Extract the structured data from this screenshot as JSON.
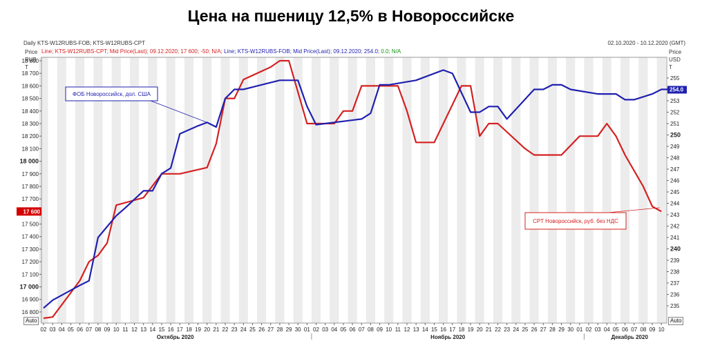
{
  "title": "Цена на пшеницу 12,5% в Новороссийске",
  "header": {
    "instruments": "Daily KTS-W12RUBS-FOB; KTS-W12RUBS-CPT",
    "date_range": "02.10.2020 - 10.12.2020 (GMT)"
  },
  "info_line": {
    "cpt": "Line; KTS-W12RUBS-CPT; Mid Price(Last); 09.12.2020; 17 600; -50; N/A;",
    "fob_blue": "Line; KTS-W12RUBS-FOB; Mid Price(Last); 09.12.2020; 254.0;",
    "fob_green": "0.0; N/A"
  },
  "left_axis": {
    "unit_lines": [
      "Price",
      "RUB",
      "T"
    ],
    "auto_label": "Auto"
  },
  "right_axis": {
    "unit_lines": [
      "Price",
      "USD",
      "T"
    ],
    "auto_label": "Auto"
  },
  "colors": {
    "cpt": "#d42020",
    "fob": "#1f1fb0",
    "grid_band": "#ececec",
    "axis": "#666666"
  },
  "chart_data": {
    "type": "line",
    "x_tick_labels": [
      "02",
      "03",
      "04",
      "05",
      "06",
      "07",
      "08",
      "09",
      "10",
      "11",
      "12",
      "13",
      "14",
      "15",
      "16",
      "17",
      "18",
      "19",
      "20",
      "21",
      "22",
      "23",
      "24",
      "25",
      "26",
      "27",
      "28",
      "29",
      "30",
      "01",
      "02",
      "03",
      "04",
      "05",
      "06",
      "07",
      "08",
      "09",
      "10",
      "11",
      "12",
      "13",
      "14",
      "15",
      "16",
      "17",
      "18",
      "19",
      "20",
      "21",
      "22",
      "23",
      "24",
      "25",
      "26",
      "27",
      "28",
      "29",
      "30",
      "01",
      "02",
      "03",
      "04",
      "05",
      "06",
      "07",
      "08",
      "09",
      "10"
    ],
    "month_labels": [
      "Октябрь 2020",
      "Ноябрь 2020",
      "Декабрь 2020"
    ],
    "y_left": {
      "unit": "RUB/T",
      "range": [
        16750,
        18900
      ],
      "ticks": [
        16800,
        16900,
        17000,
        17100,
        17200,
        17300,
        17400,
        17500,
        17600,
        17700,
        17800,
        17900,
        18000,
        18100,
        18200,
        18300,
        18400,
        18500,
        18600,
        18700,
        18800
      ],
      "tick_labels": [
        "16 800",
        "16 900",
        "17 000",
        "17 100",
        "17 200",
        "17 300",
        "17 400",
        "17 500",
        "17 600",
        "17 700",
        "17 800",
        "17 900",
        "18 000",
        "18 100",
        "18 200",
        "18 300",
        "18 400",
        "18 500",
        "18 600",
        "18 700",
        "18 800"
      ],
      "bold_ticks": [
        17000,
        18000
      ],
      "current_value": 17600,
      "current_label": "17 600"
    },
    "y_right": {
      "unit": "USD/T",
      "range": [
        234.3,
        256.2
      ],
      "ticks": [
        235,
        236,
        237,
        238,
        239,
        240,
        241,
        242,
        243,
        244,
        245,
        246,
        247,
        248,
        249,
        250,
        251,
        252,
        253,
        254,
        255
      ],
      "tick_labels": [
        "235",
        "236",
        "237",
        "238",
        "239",
        "240",
        "241",
        "242",
        "243",
        "244",
        "245",
        "246",
        "247",
        "248",
        "249",
        "250",
        "251",
        "252",
        "253",
        "254",
        "255"
      ],
      "bold_ticks": [
        240,
        250
      ],
      "current_value": 254,
      "current_label": "254.0"
    },
    "series": [
      {
        "name": "CPT",
        "axis": "left",
        "color": "#d42020",
        "points": [
          [
            0,
            16750
          ],
          [
            1,
            16760
          ],
          [
            4,
            17050
          ],
          [
            5,
            17200
          ],
          [
            6,
            17250
          ],
          [
            7,
            17350
          ],
          [
            8,
            17650
          ],
          [
            10,
            17690
          ],
          [
            11,
            17710
          ],
          [
            13,
            17900
          ],
          [
            15,
            17900
          ],
          [
            18,
            17950
          ],
          [
            19,
            18140
          ],
          [
            20,
            18500
          ],
          [
            21,
            18500
          ],
          [
            22,
            18650
          ],
          [
            25,
            18750
          ],
          [
            26,
            18800
          ],
          [
            27,
            18800
          ],
          [
            29,
            18300
          ],
          [
            32,
            18300
          ],
          [
            33,
            18400
          ],
          [
            34,
            18400
          ],
          [
            35,
            18600
          ],
          [
            39,
            18600
          ],
          [
            40,
            18400
          ],
          [
            41,
            18150
          ],
          [
            43,
            18150
          ],
          [
            46,
            18600
          ],
          [
            47,
            18600
          ],
          [
            48,
            18200
          ],
          [
            49,
            18300
          ],
          [
            50,
            18300
          ],
          [
            53,
            18100
          ],
          [
            54,
            18050
          ],
          [
            57,
            18050
          ],
          [
            59,
            18200
          ],
          [
            61,
            18200
          ],
          [
            62,
            18300
          ],
          [
            63,
            18200
          ],
          [
            64,
            18050
          ],
          [
            66,
            17800
          ],
          [
            67,
            17640
          ],
          [
            68,
            17600
          ]
        ]
      },
      {
        "name": "FOB",
        "axis": "right",
        "color": "#1f1fb0",
        "points": [
          [
            0,
            234.8
          ],
          [
            1,
            235.5
          ],
          [
            4,
            236.8
          ],
          [
            5,
            237.2
          ],
          [
            6,
            241.0
          ],
          [
            8,
            242.9
          ],
          [
            9,
            243.6
          ],
          [
            11,
            245.1
          ],
          [
            12,
            245.1
          ],
          [
            13,
            246.6
          ],
          [
            14,
            247.1
          ],
          [
            15,
            250.1
          ],
          [
            17,
            250.8
          ],
          [
            18,
            251.1
          ],
          [
            19,
            250.7
          ],
          [
            20,
            253.2
          ],
          [
            21,
            254.0
          ],
          [
            22,
            254.0
          ],
          [
            26,
            254.8
          ],
          [
            28,
            254.8
          ],
          [
            29,
            252.5
          ],
          [
            30,
            250.9
          ],
          [
            35,
            251.4
          ],
          [
            36,
            251.9
          ],
          [
            37,
            254.4
          ],
          [
            38,
            254.4
          ],
          [
            41,
            254.8
          ],
          [
            44,
            255.7
          ],
          [
            45,
            255.4
          ],
          [
            47,
            252.0
          ],
          [
            48,
            252.0
          ],
          [
            49,
            252.5
          ],
          [
            50,
            252.5
          ],
          [
            51,
            251.4
          ],
          [
            54,
            254.0
          ],
          [
            55,
            254.0
          ],
          [
            56,
            254.4
          ],
          [
            57,
            254.4
          ],
          [
            58,
            254.0
          ],
          [
            61,
            253.6
          ],
          [
            63,
            253.6
          ],
          [
            64,
            253.1
          ],
          [
            65,
            253.1
          ],
          [
            67,
            253.6
          ],
          [
            68,
            254.0
          ],
          [
            69,
            254.0
          ]
        ]
      }
    ],
    "annotations": [
      {
        "text": "ФОБ Новороссийск, дол. США",
        "series": "FOB"
      },
      {
        "text": "CPT Новороссийск, руб. без НДС",
        "series": "CPT"
      }
    ]
  }
}
